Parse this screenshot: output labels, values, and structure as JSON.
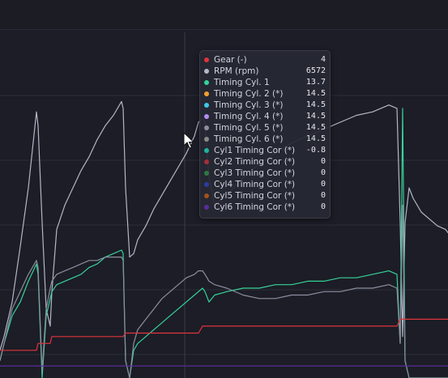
{
  "colors": {
    "background": "#1c1d26",
    "grid": "#2c2e38",
    "crosshair": "#3a3c48"
  },
  "tooltip": {
    "rows": [
      {
        "label": "Gear (-)",
        "value": "4",
        "color": "#e0343c"
      },
      {
        "label": "RPM (rpm)",
        "value": "6572",
        "color": "#b4b6c8"
      },
      {
        "label": "Timing Cyl. 1",
        "value": "13.7",
        "color": "#36d29a"
      },
      {
        "label": "Timing Cyl. 2 (*)",
        "value": "14.5",
        "color": "#f0a030"
      },
      {
        "label": "Timing Cyl. 3 (*)",
        "value": "14.5",
        "color": "#3cc8e6"
      },
      {
        "label": "Timing Cyl. 4 (*)",
        "value": "14.5",
        "color": "#b48cf0"
      },
      {
        "label": "Timing Cyl. 5 (*)",
        "value": "14.5",
        "color": "#8c8ea0"
      },
      {
        "label": "Timing Cyl. 6 (*)",
        "value": "14.5",
        "color": "#8a8a8a"
      },
      {
        "label": "Cyl1 Timing Cor (*)",
        "value": "-0.8",
        "color": "#1eb4a0"
      },
      {
        "label": "Cyl2 Timing Cor (*)",
        "value": "0",
        "color": "#a0303c"
      },
      {
        "label": "Cyl3 Timing Cor (*)",
        "value": "0",
        "color": "#2e7a40"
      },
      {
        "label": "Cyl4 Timing Cor (*)",
        "value": "0",
        "color": "#2c3ca0"
      },
      {
        "label": "Cyl5 Timing Cor (*)",
        "value": "0",
        "color": "#a0521e"
      },
      {
        "label": "Cyl6 Timing Cor (*)",
        "value": "0",
        "color": "#5a2c9a"
      }
    ]
  },
  "chart_data": {
    "type": "line",
    "grid": true,
    "legend": "tooltip",
    "x": [
      0,
      5,
      15,
      25,
      35,
      45,
      47,
      52,
      57,
      62,
      64,
      70,
      80,
      90,
      100,
      110,
      120,
      130,
      140,
      150,
      152,
      155,
      160,
      165,
      170,
      180,
      190,
      200,
      210,
      220,
      230,
      240,
      245,
      250,
      253,
      258,
      265,
      280,
      300,
      320,
      340,
      360,
      380,
      400,
      420,
      440,
      460,
      480,
      490,
      494,
      497,
      500,
      505,
      510,
      520,
      530,
      540,
      550,
      553
    ],
    "series": [
      {
        "name": "RPM (rpm)",
        "color": "#b4b6c8",
        "values": [
          0.08,
          0.12,
          0.22,
          0.38,
          0.55,
          0.77,
          0.73,
          0.45,
          0.2,
          0.15,
          0.25,
          0.43,
          0.5,
          0.55,
          0.6,
          0.64,
          0.69,
          0.73,
          0.76,
          0.8,
          0.78,
          0.55,
          0.35,
          0.36,
          0.4,
          0.44,
          0.49,
          0.53,
          0.57,
          0.61,
          0.65,
          0.7,
          0.74,
          0.75,
          0.74,
          0.58,
          0.5,
          0.53,
          0.58,
          0.62,
          0.65,
          0.68,
          0.7,
          0.72,
          0.74,
          0.76,
          0.77,
          0.79,
          0.78,
          0.45,
          0.12,
          0.45,
          0.55,
          0.52,
          0.48,
          0.46,
          0.44,
          0.43,
          0.42
        ]
      },
      {
        "name": "Timing Cyl. 1",
        "color": "#36d29a",
        "values": [
          0.05,
          0.1,
          0.18,
          0.22,
          0.28,
          0.33,
          0.3,
          0.0,
          0.18,
          0.23,
          0.25,
          0.27,
          0.28,
          0.29,
          0.3,
          0.32,
          0.33,
          0.35,
          0.36,
          0.37,
          0.36,
          0.05,
          0.0,
          0.08,
          0.1,
          0.12,
          0.14,
          0.16,
          0.18,
          0.2,
          0.22,
          0.24,
          0.25,
          0.26,
          0.25,
          0.22,
          0.24,
          0.25,
          0.26,
          0.26,
          0.27,
          0.27,
          0.28,
          0.28,
          0.29,
          0.29,
          0.3,
          0.31,
          0.3,
          0.1,
          0.78,
          0.05,
          0.0,
          0.0,
          0.0,
          0.0,
          0.0,
          0.0,
          0.0
        ]
      },
      {
        "name": "Timing Cyl. 2 (*)",
        "color": "#8c8ea0",
        "values": [
          0.05,
          0.1,
          0.2,
          0.25,
          0.3,
          0.34,
          0.32,
          0.02,
          0.2,
          0.26,
          0.28,
          0.3,
          0.31,
          0.32,
          0.33,
          0.34,
          0.34,
          0.35,
          0.35,
          0.35,
          0.34,
          0.05,
          0.0,
          0.1,
          0.14,
          0.17,
          0.2,
          0.23,
          0.25,
          0.27,
          0.29,
          0.3,
          0.31,
          0.31,
          0.3,
          0.28,
          0.27,
          0.26,
          0.24,
          0.23,
          0.23,
          0.24,
          0.24,
          0.25,
          0.25,
          0.26,
          0.26,
          0.27,
          0.26,
          0.1,
          0.5,
          0.05,
          0.0,
          0.0,
          0.0,
          0.0,
          0.0,
          0.0,
          0.0
        ]
      },
      {
        "name": "Gear (-)",
        "color": "#e0343c",
        "values": [
          0.08,
          0.08,
          0.08,
          0.08,
          0.08,
          0.08,
          0.1,
          0.1,
          0.1,
          0.1,
          0.12,
          0.12,
          0.12,
          0.12,
          0.12,
          0.12,
          0.12,
          0.12,
          0.12,
          0.12,
          0.12,
          0.13,
          0.13,
          0.13,
          0.13,
          0.13,
          0.13,
          0.13,
          0.13,
          0.13,
          0.13,
          0.13,
          0.13,
          0.15,
          0.15,
          0.15,
          0.15,
          0.15,
          0.15,
          0.15,
          0.15,
          0.15,
          0.15,
          0.15,
          0.15,
          0.15,
          0.15,
          0.15,
          0.15,
          0.17,
          0.17,
          0.17,
          0.17,
          0.17,
          0.17,
          0.17,
          0.17,
          0.17,
          0.17
        ]
      },
      {
        "name": "Cyl6 Timing Cor (*)",
        "color": "#5a2c9a",
        "values": [
          0.035,
          0.035,
          0.035,
          0.035,
          0.035,
          0.035,
          0.035,
          0.035,
          0.035,
          0.035,
          0.035,
          0.035,
          0.035,
          0.035,
          0.035,
          0.035,
          0.035,
          0.035,
          0.035,
          0.035,
          0.035,
          0.035,
          0.035,
          0.035,
          0.035,
          0.035,
          0.035,
          0.035,
          0.035,
          0.035,
          0.035,
          0.035,
          0.035,
          0.035,
          0.035,
          0.035,
          0.035,
          0.035,
          0.035,
          0.035,
          0.035,
          0.035,
          0.035,
          0.035,
          0.035,
          0.035,
          0.035,
          0.035,
          0.035,
          0.035,
          0.035,
          0.035,
          0.035,
          0.035,
          0.035,
          0.035,
          0.035,
          0.035,
          0.035
        ]
      }
    ],
    "ylim": [
      0,
      1
    ]
  }
}
